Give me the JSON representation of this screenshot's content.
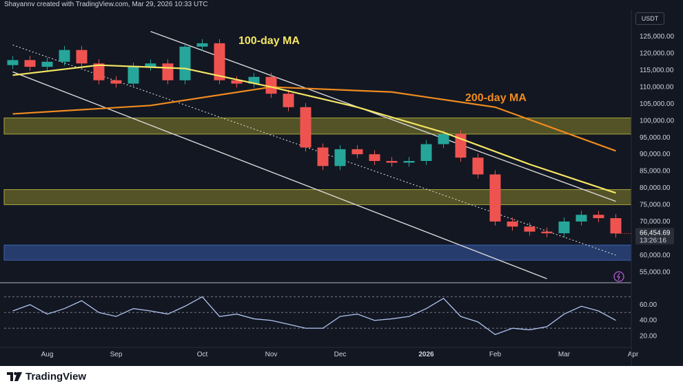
{
  "header": {
    "attribution": "Shayannv created with TradingView.com, Mar 29, 2026 10:33 UTC"
  },
  "price_axis": {
    "currency": "USDT",
    "ticks": [
      "125,000.00",
      "120,000.00",
      "115,000.00",
      "110,000.00",
      "105,000.00",
      "100,000.00",
      "95,000.00",
      "90,000.00",
      "85,000.00",
      "80,000.00",
      "75,000.00",
      "70,000.00",
      "65,000.00",
      "60,000.00",
      "55,000.00"
    ],
    "last_price": "66,454.69",
    "countdown": "13:26:16"
  },
  "rsi_axis": {
    "ticks": [
      "60.00",
      "40.00",
      "20.00"
    ]
  },
  "time_axis": {
    "labels": [
      "Aug",
      "Sep",
      "Oct",
      "Nov",
      "Dec",
      "2026",
      "Feb",
      "Mar",
      "Apr"
    ]
  },
  "annotations": {
    "ma100": "100-day MA",
    "ma200": "200-day MA"
  },
  "footer": {
    "brand": "TradingView"
  },
  "colors": {
    "background": "#131722",
    "up": "#26a69a",
    "down": "#ef5350",
    "ma100": "#f5e663",
    "ma200": "#f08c1e",
    "zone": "#7e7b2c",
    "support_zone": "#2e4a86",
    "rsi": "#b0c4f0"
  },
  "chart_data": [
    {
      "type": "candlestick",
      "title": "",
      "ylim": [
        52000,
        133000
      ],
      "x": [
        "2025-07-21",
        "2025-07-28",
        "2025-08-04",
        "2025-08-11",
        "2025-08-18",
        "2025-08-25",
        "2025-09-01",
        "2025-09-08",
        "2025-09-15",
        "2025-09-22",
        "2025-09-29",
        "2025-10-06",
        "2025-10-13",
        "2025-10-20",
        "2025-10-27",
        "2025-11-03",
        "2025-11-10",
        "2025-11-17",
        "2025-11-24",
        "2025-12-01",
        "2025-12-08",
        "2025-12-15",
        "2025-12-22",
        "2025-12-29",
        "2026-01-05",
        "2026-01-12",
        "2026-01-19",
        "2026-01-26",
        "2026-02-02",
        "2026-02-09",
        "2026-02-16",
        "2026-02-23",
        "2026-03-02",
        "2026-03-09",
        "2026-03-16",
        "2026-03-23"
      ],
      "close": [
        118000,
        116000,
        117500,
        121000,
        117000,
        112000,
        111000,
        116000,
        117000,
        112000,
        122000,
        123000,
        112000,
        111000,
        113000,
        108000,
        104000,
        92000,
        86500,
        91500,
        90000,
        88000,
        87500,
        88000,
        93000,
        96000,
        89000,
        84000,
        70000,
        68500,
        67000,
        66500,
        70000,
        72000,
        71000,
        66454.69
      ],
      "legend": [
        "100-day MA",
        "200-day MA"
      ],
      "ma100": [
        [
          0,
          113500
        ],
        [
          5,
          116500
        ],
        [
          10,
          115500
        ],
        [
          15,
          110000
        ],
        [
          20,
          104000
        ],
        [
          25,
          96500
        ],
        [
          30,
          87000
        ],
        [
          35,
          78500
        ]
      ],
      "ma200": [
        [
          0,
          102000
        ],
        [
          8,
          104500
        ],
        [
          15,
          110000
        ],
        [
          22,
          108500
        ],
        [
          28,
          104000
        ],
        [
          35,
          91000
        ]
      ],
      "zones": [
        [
          96000,
          100800
        ],
        [
          75000,
          79500
        ],
        [
          58500,
          63000
        ]
      ],
      "channel_upper": [
        [
          8,
          126500
        ],
        [
          35,
          76000
        ]
      ],
      "channel_lower": [
        [
          0,
          114500
        ],
        [
          31,
          53000
        ]
      ],
      "channel_mid": [
        [
          0,
          122500
        ],
        [
          35,
          60000
        ]
      ]
    },
    {
      "type": "line",
      "title": "",
      "ylim": [
        10,
        80
      ],
      "series": [
        {
          "values": [
            52,
            60,
            48,
            55,
            65,
            50,
            45,
            55,
            52,
            48,
            58,
            70,
            45,
            48,
            42,
            40,
            35,
            30,
            30,
            45,
            48,
            40,
            42,
            45,
            55,
            68,
            45,
            38,
            22,
            30,
            28,
            32,
            48,
            58,
            52,
            40
          ]
        }
      ]
    }
  ]
}
